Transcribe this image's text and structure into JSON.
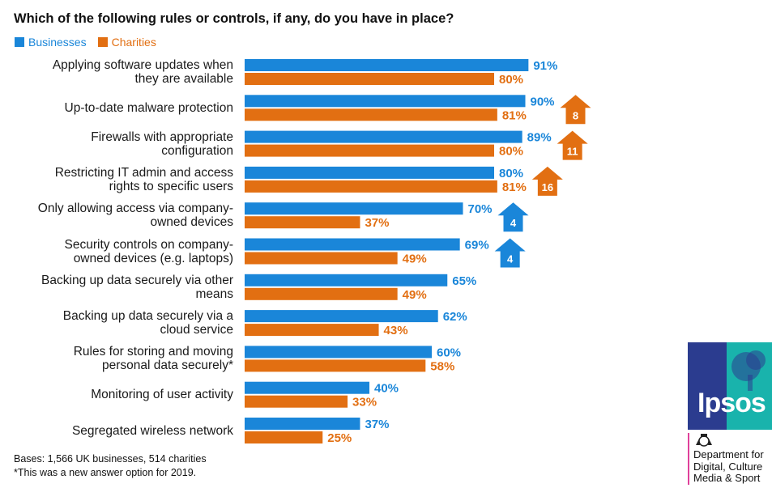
{
  "title": "Which of the following rules or controls, if any, do you have in place?",
  "colors": {
    "businesses": "#1a86d9",
    "charities": "#e26f12"
  },
  "chart_data": {
    "type": "bar",
    "orientation": "horizontal",
    "title": "Which of the following rules or controls, if any, do you have in place?",
    "categories": [
      [
        "Applying software updates when",
        "they are available"
      ],
      [
        "Up-to-date malware protection"
      ],
      [
        "Firewalls with appropriate",
        "configuration"
      ],
      [
        "Restricting IT admin and access",
        "rights to specific users"
      ],
      [
        "Only allowing access via company-",
        "owned devices"
      ],
      [
        "Security controls on company-",
        "owned devices (e.g. laptops)"
      ],
      [
        "Backing up data securely via other",
        "means"
      ],
      [
        "Backing up data securely via a",
        "cloud service"
      ],
      [
        "Rules for storing and moving",
        "personal data securely*"
      ],
      [
        "Monitoring of user activity"
      ],
      [
        "Segregated wireless network"
      ]
    ],
    "series": [
      {
        "name": "Businesses",
        "values": [
          91,
          90,
          89,
          80,
          70,
          69,
          65,
          62,
          60,
          40,
          37
        ],
        "labels": [
          "91%",
          "90%",
          "89%",
          "80%",
          "70%",
          "69%",
          "65%",
          "62%",
          "60%",
          "40%",
          "37%"
        ]
      },
      {
        "name": "Charities",
        "values": [
          80,
          81,
          80,
          81,
          37,
          49,
          49,
          43,
          58,
          33,
          25
        ],
        "labels": [
          "80%",
          "81%",
          "80%",
          "81%",
          "37%",
          "49%",
          "49%",
          "43%",
          "58%",
          "33%",
          "25%"
        ]
      }
    ],
    "change_markers": [
      {
        "category_index": 1,
        "series": "Charities",
        "value": "8"
      },
      {
        "category_index": 2,
        "series": "Charities",
        "value": "11"
      },
      {
        "category_index": 3,
        "series": "Charities",
        "value": "16"
      },
      {
        "category_index": 4,
        "series": "Businesses",
        "value": "4"
      },
      {
        "category_index": 5,
        "series": "Businesses",
        "value": "4"
      }
    ],
    "xlim": [
      0,
      100
    ]
  },
  "footnotes": {
    "bases": "Bases: 1,566 UK businesses, 514 charities",
    "new_option": "*This was a new answer option for 2019."
  },
  "logo": {
    "text": "Ipsos"
  },
  "department": {
    "lines": [
      "Department for",
      "Digital, Culture",
      "Media & Sport"
    ]
  }
}
